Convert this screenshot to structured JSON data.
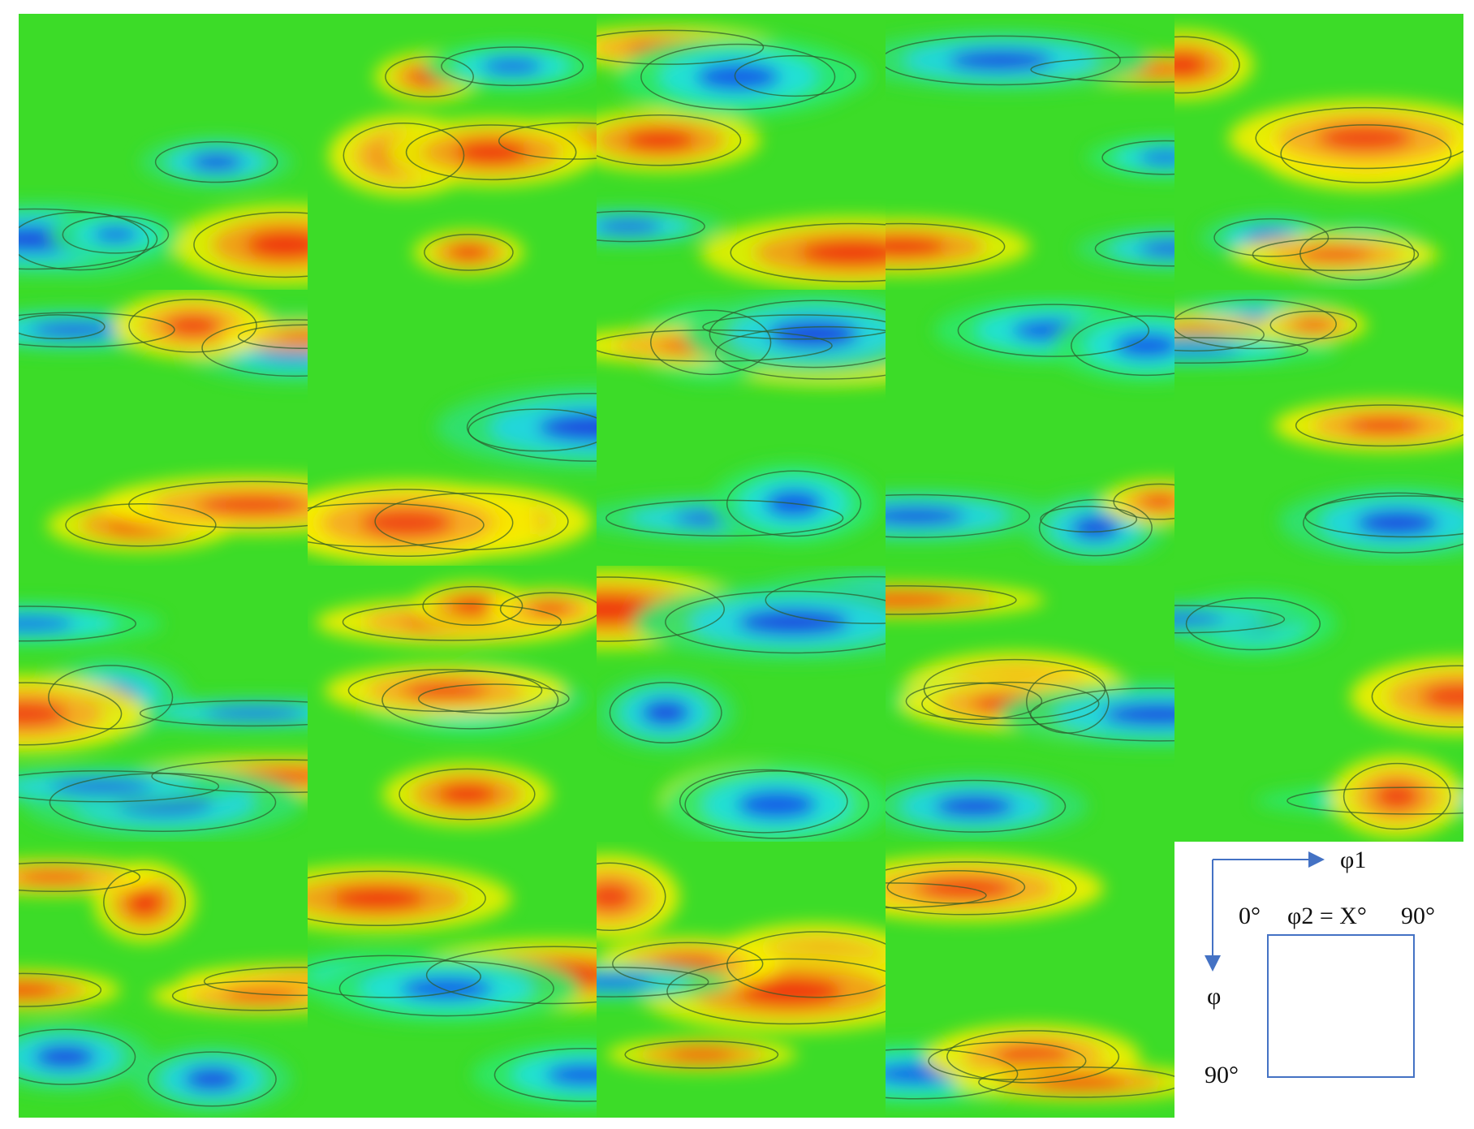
{
  "legend": {
    "axis_horizontal": "φ1",
    "axis_vertical": "φ",
    "top_left": "0°",
    "section": "φ2 = X°",
    "top_right": "90°",
    "bottom_left": "90°"
  }
}
